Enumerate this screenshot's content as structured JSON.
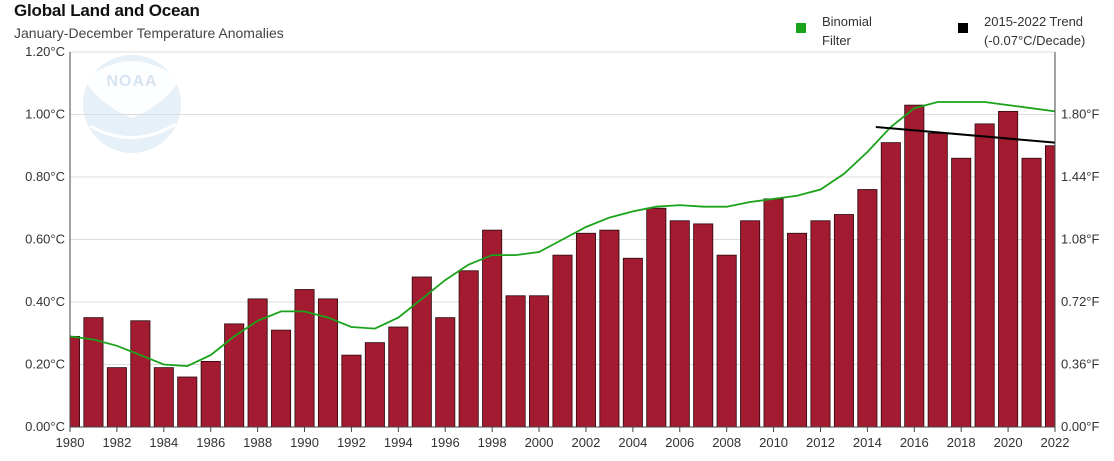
{
  "title": "Global Land and Ocean",
  "subtitle": "January-December Temperature Anomalies",
  "legend": {
    "binomial_line1": "Binomial",
    "binomial_line2": "Filter",
    "trend_line1": "2015-2022 Trend",
    "trend_line2": "(-0.07°C/Decade)"
  },
  "colors": {
    "bar": "#a31b30",
    "bar_stroke": "#2a0a0f",
    "filter": "#1aa31a",
    "trend": "#000000",
    "grid": "#dddddd",
    "axis": "#444444"
  },
  "logo": {
    "text": "NOAA"
  },
  "chart_data": {
    "type": "bar",
    "title": "Global Land and Ocean",
    "subtitle": "January-December Temperature Anomalies",
    "x": [
      1980,
      1981,
      1982,
      1983,
      1984,
      1985,
      1986,
      1987,
      1988,
      1989,
      1990,
      1991,
      1992,
      1993,
      1994,
      1995,
      1996,
      1997,
      1998,
      1999,
      2000,
      2001,
      2002,
      2003,
      2004,
      2005,
      2006,
      2007,
      2008,
      2009,
      2010,
      2011,
      2012,
      2013,
      2014,
      2015,
      2016,
      2017,
      2018,
      2019,
      2020,
      2021,
      2022
    ],
    "x_tick_labels": [
      "1980",
      "1982",
      "1984",
      "1986",
      "1988",
      "1990",
      "1992",
      "1994",
      "1996",
      "1998",
      "2000",
      "2002",
      "2004",
      "2006",
      "2008",
      "2010",
      "2012",
      "2014",
      "2016",
      "2018",
      "2020",
      "2022"
    ],
    "series": [
      {
        "type": "bar",
        "values": [
          0.29,
          0.35,
          0.19,
          0.34,
          0.19,
          0.16,
          0.21,
          0.33,
          0.41,
          0.31,
          0.44,
          0.41,
          0.23,
          0.27,
          0.32,
          0.48,
          0.35,
          0.5,
          0.63,
          0.42,
          0.42,
          0.55,
          0.62,
          0.63,
          0.54,
          0.7,
          0.66,
          0.65,
          0.55,
          0.66,
          0.73,
          0.62,
          0.66,
          0.68,
          0.76,
          0.91,
          1.03,
          0.94,
          0.86,
          0.97,
          1.01,
          0.86,
          0.9
        ]
      },
      {
        "name": "Binomial Filter",
        "type": "line",
        "values": [
          0.29,
          0.28,
          0.26,
          0.23,
          0.2,
          0.195,
          0.23,
          0.29,
          0.34,
          0.37,
          0.37,
          0.35,
          0.32,
          0.315,
          0.35,
          0.41,
          0.47,
          0.52,
          0.55,
          0.55,
          0.56,
          0.6,
          0.64,
          0.67,
          0.69,
          0.705,
          0.71,
          0.705,
          0.705,
          0.72,
          0.73,
          0.74,
          0.76,
          0.81,
          0.88,
          0.96,
          1.02,
          1.04,
          1.04,
          1.04,
          1.03,
          1.02,
          1.01
        ]
      },
      {
        "name": "2015-2022 Trend",
        "type": "line",
        "x": [
          2015,
          2022
        ],
        "values": [
          0.96,
          0.91
        ]
      }
    ],
    "y_left": {
      "ticks": [
        0.0,
        0.2,
        0.4,
        0.6,
        0.8,
        1.0,
        1.2
      ],
      "labels": [
        "0.00°C",
        "0.20°C",
        "0.40°C",
        "0.60°C",
        "0.80°C",
        "1.00°C",
        "1.20°C"
      ],
      "ylim": [
        0.0,
        1.2
      ]
    },
    "y_right": {
      "ticks": [
        0.0,
        0.36,
        0.72,
        1.08,
        1.44,
        1.8
      ],
      "labels": [
        "0.00°F",
        "0.36°F",
        "0.72°F",
        "1.08°F",
        "1.44°F",
        "1.80°F"
      ],
      "ylim": [
        0.0,
        2.16
      ]
    },
    "grid": true,
    "legend_position": "top-right"
  }
}
